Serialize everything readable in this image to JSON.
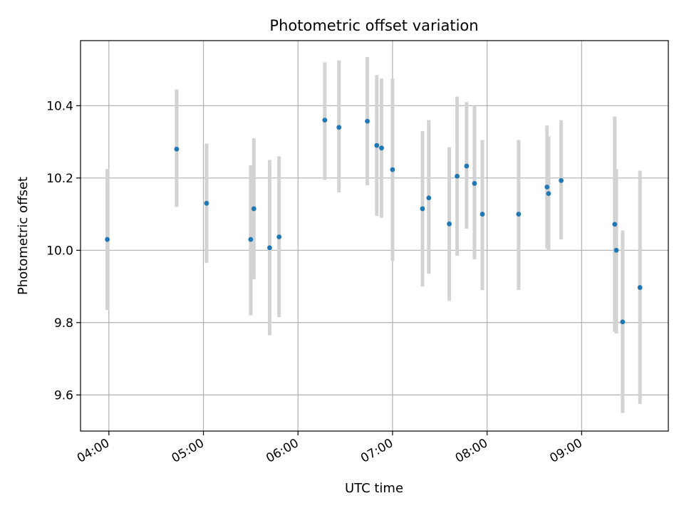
{
  "chart_data": {
    "type": "scatter",
    "title": "Photometric offset variation",
    "xlabel": "UTC time",
    "ylabel": "Photometric offset",
    "x_ticks": [
      "04:00",
      "05:00",
      "06:00",
      "07:00",
      "08:00",
      "09:00"
    ],
    "y_ticks": [
      "9.6",
      "9.8",
      "10.0",
      "10.2",
      "10.4"
    ],
    "xlim": [
      "03:42",
      "09:55"
    ],
    "ylim": [
      9.5,
      10.58
    ],
    "grid": true,
    "point_color": "#1f77b4",
    "errorbar_color": "#d3d3d3",
    "points": [
      {
        "t": "03:59",
        "y": 10.03,
        "lo": 9.835,
        "hi": 10.225
      },
      {
        "t": "04:43",
        "y": 10.28,
        "lo": 10.12,
        "hi": 10.445
      },
      {
        "t": "05:02",
        "y": 10.13,
        "lo": 9.965,
        "hi": 10.295
      },
      {
        "t": "05:30",
        "y": 10.03,
        "lo": 9.82,
        "hi": 10.235
      },
      {
        "t": "05:32",
        "y": 10.115,
        "lo": 9.92,
        "hi": 10.31
      },
      {
        "t": "05:42",
        "y": 10.007,
        "lo": 9.765,
        "hi": 10.25
      },
      {
        "t": "05:48",
        "y": 10.037,
        "lo": 9.815,
        "hi": 10.26
      },
      {
        "t": "06:17",
        "y": 10.36,
        "lo": 10.195,
        "hi": 10.52
      },
      {
        "t": "06:26",
        "y": 10.34,
        "lo": 10.16,
        "hi": 10.525
      },
      {
        "t": "06:44",
        "y": 10.357,
        "lo": 10.18,
        "hi": 10.535
      },
      {
        "t": "06:50",
        "y": 10.29,
        "lo": 10.095,
        "hi": 10.485
      },
      {
        "t": "06:53",
        "y": 10.283,
        "lo": 10.09,
        "hi": 10.475
      },
      {
        "t": "07:00",
        "y": 10.223,
        "lo": 9.97,
        "hi": 10.475
      },
      {
        "t": "07:19",
        "y": 10.115,
        "lo": 9.9,
        "hi": 10.33
      },
      {
        "t": "07:23",
        "y": 10.145,
        "lo": 9.935,
        "hi": 10.36
      },
      {
        "t": "07:36",
        "y": 10.073,
        "lo": 9.86,
        "hi": 10.285
      },
      {
        "t": "07:41",
        "y": 10.205,
        "lo": 9.985,
        "hi": 10.425
      },
      {
        "t": "07:47",
        "y": 10.233,
        "lo": 10.06,
        "hi": 10.41
      },
      {
        "t": "07:52",
        "y": 10.185,
        "lo": 9.975,
        "hi": 10.4
      },
      {
        "t": "07:57",
        "y": 10.1,
        "lo": 9.89,
        "hi": 10.305
      },
      {
        "t": "08:20",
        "y": 10.1,
        "lo": 9.89,
        "hi": 10.305
      },
      {
        "t": "08:38",
        "y": 10.175,
        "lo": 10.005,
        "hi": 10.345
      },
      {
        "t": "08:39",
        "y": 10.157,
        "lo": 10.0,
        "hi": 10.315
      },
      {
        "t": "08:47",
        "y": 10.193,
        "lo": 10.03,
        "hi": 10.36
      },
      {
        "t": "09:21",
        "y": 10.072,
        "lo": 9.775,
        "hi": 10.37
      },
      {
        "t": "09:22",
        "y": 10.0,
        "lo": 9.77,
        "hi": 10.225
      },
      {
        "t": "09:26",
        "y": 9.802,
        "lo": 9.55,
        "hi": 10.055
      },
      {
        "t": "09:37",
        "y": 9.897,
        "lo": 9.575,
        "hi": 10.22
      }
    ]
  }
}
